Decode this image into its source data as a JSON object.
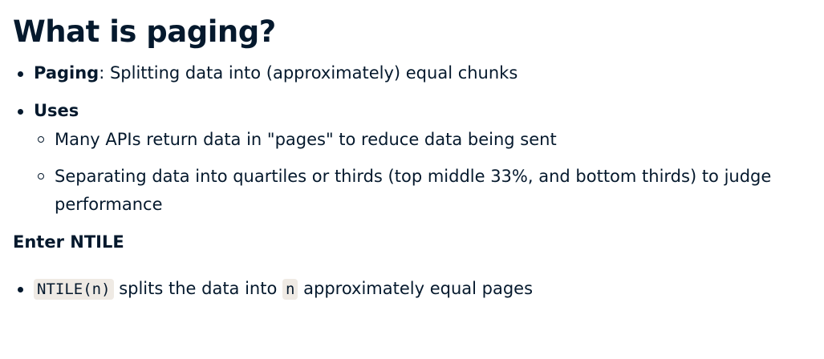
{
  "title": "What is paging?",
  "bullets": [
    {
      "term": "Paging",
      "text": ": Splitting data into (approximately) equal chunks"
    },
    {
      "term": "Uses",
      "subitems": [
        "Many APIs return data in \"pages\" to reduce data being sent",
        "Separating data into quartiles or thirds (top middle 33%, and bottom thirds) to judge",
        "performance"
      ]
    }
  ],
  "section_heading": "Enter NTILE",
  "ntile": {
    "code1": "NTILE(n)",
    "text1": " splits the data into ",
    "code2": "n",
    "text2": " approximately equal pages"
  }
}
